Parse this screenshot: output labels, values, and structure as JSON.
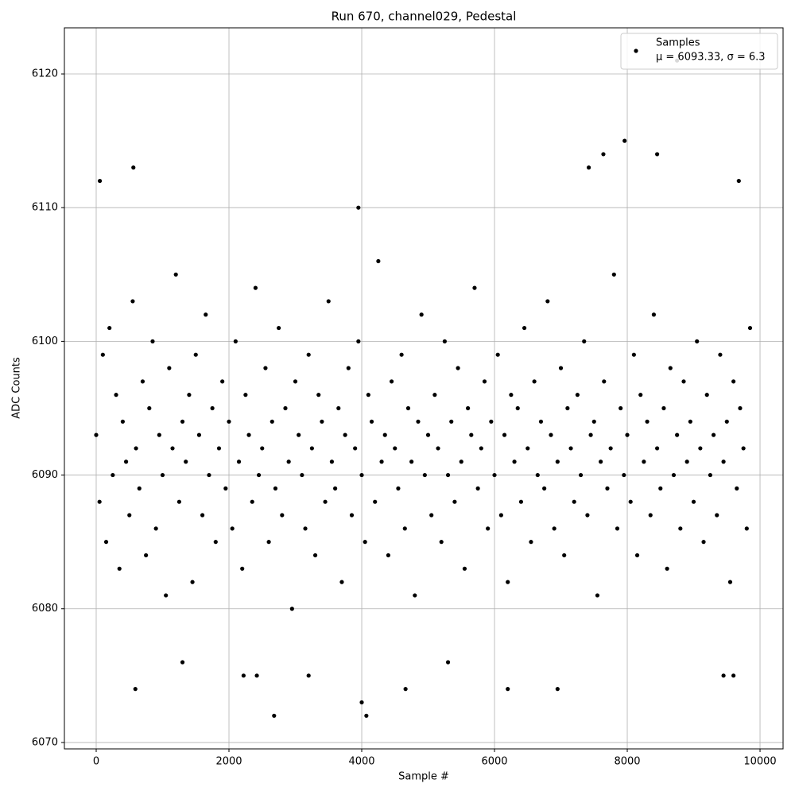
{
  "chart_data": {
    "type": "scatter",
    "title": "Run 670, channel029, Pedestal",
    "xlabel": "Sample #",
    "ylabel": "ADC Counts",
    "x": [
      0,
      50,
      100,
      150,
      200,
      250,
      300,
      350,
      400,
      450,
      500,
      550,
      600,
      650,
      700,
      750,
      800,
      850,
      900,
      950,
      1000,
      1050,
      1100,
      1150,
      1200,
      1250,
      1300,
      1350,
      1400,
      1450,
      1500,
      1550,
      1600,
      1650,
      1700,
      1750,
      1800,
      1850,
      1900,
      1950,
      2000,
      2050,
      2100,
      2150,
      2200,
      2250,
      2300,
      2350,
      2400,
      2450,
      2500,
      2550,
      2600,
      2650,
      2700,
      2750,
      2800,
      2850,
      2900,
      2950,
      3000,
      3050,
      3100,
      3150,
      3200,
      3250,
      3300,
      3350,
      3400,
      3450,
      3500,
      3550,
      3600,
      3650,
      3700,
      3750,
      3800,
      3850,
      3900,
      3950,
      4000,
      4050,
      4100,
      4150,
      4200,
      4250,
      4300,
      4350,
      4400,
      4450,
      4500,
      4550,
      4600,
      4650,
      4700,
      4750,
      4800,
      4850,
      4900,
      4950,
      5000,
      5050,
      5100,
      5150,
      5200,
      5250,
      5300,
      5350,
      5400,
      5450,
      5500,
      5550,
      5600,
      5650,
      5700,
      5750,
      5800,
      5850,
      5900,
      5950,
      6000,
      6050,
      6100,
      6150,
      6200,
      6250,
      6300,
      6350,
      6400,
      6450,
      6500,
      6550,
      6600,
      6650,
      6700,
      6750,
      6800,
      6850,
      6900,
      6950,
      7000,
      7050,
      7100,
      7150,
      7200,
      7250,
      7300,
      7350,
      7400,
      7450,
      7500,
      7550,
      7600,
      7650,
      7700,
      7750,
      7800,
      7850,
      7900,
      7950,
      8000,
      8050,
      8100,
      8150,
      8200,
      8250,
      8300,
      8350,
      8400,
      8450,
      8500,
      8550,
      8600,
      8650,
      8700,
      8750,
      8800,
      8850,
      8900,
      8950,
      9000,
      9050,
      9100,
      9150,
      9200,
      9250,
      9300,
      9350,
      9400,
      9450,
      9500,
      9550,
      9600,
      9650,
      9700,
      9750,
      9800,
      9850,
      55,
      560,
      590,
      2680,
      4000,
      4070,
      7420,
      7640,
      7960,
      8450,
      9680,
      8750,
      3950,
      6950,
      6200,
      4660,
      9450,
      9600,
      2220,
      2420,
      3200,
      5300,
      1300
    ],
    "series": [
      {
        "name": "Samples",
        "color": "#000000",
        "values": [
          6093,
          6088,
          6099,
          6085,
          6101,
          6090,
          6096,
          6083,
          6094,
          6091,
          6087,
          6103,
          6092,
          6089,
          6097,
          6084,
          6095,
          6100,
          6086,
          6093,
          6090,
          6081,
          6098,
          6092,
          6105,
          6088,
          6094,
          6091,
          6096,
          6082,
          6099,
          6093,
          6087,
          6102,
          6090,
          6095,
          6085,
          6092,
          6097,
          6089,
          6094,
          6086,
          6100,
          6091,
          6083,
          6096,
          6093,
          6088,
          6104,
          6090,
          6092,
          6098,
          6085,
          6094,
          6089,
          6101,
          6087,
          6095,
          6091,
          6080,
          6097,
          6093,
          6090,
          6086,
          6099,
          6092,
          6084,
          6096,
          6094,
          6088,
          6103,
          6091,
          6089,
          6095,
          6082,
          6093,
          6098,
          6087,
          6092,
          6100,
          6090,
          6085,
          6096,
          6094,
          6088,
          6106,
          6091,
          6093,
          6084,
          6097,
          6092,
          6089,
          6099,
          6086,
          6095,
          6091,
          6081,
          6094,
          6102,
          6090,
          6093,
          6087,
          6096,
          6092,
          6085,
          6100,
          6090,
          6094,
          6088,
          6098,
          6091,
          6083,
          6095,
          6093,
          6104,
          6089,
          6092,
          6097,
          6086,
          6094,
          6090,
          6099,
          6087,
          6093,
          6082,
          6096,
          6091,
          6095,
          6088,
          6101,
          6092,
          6085,
          6097,
          6090,
          6094,
          6089,
          6103,
          6093,
          6086,
          6091,
          6098,
          6084,
          6095,
          6092,
          6088,
          6096,
          6090,
          6100,
          6087,
          6093,
          6094,
          6081,
          6091,
          6097,
          6089,
          6092,
          6105,
          6086,
          6095,
          6090,
          6093,
          6088,
          6099,
          6084,
          6096,
          6091,
          6094,
          6087,
          6102,
          6092,
          6089,
          6095,
          6083,
          6098,
          6090,
          6093,
          6086,
          6097,
          6091,
          6094,
          6088,
          6100,
          6092,
          6085,
          6096,
          6090,
          6093,
          6087,
          6099,
          6091,
          6094,
          6082,
          6097,
          6089,
          6095,
          6092,
          6086,
          6101,
          6112,
          6113,
          6074,
          6072,
          6073,
          6072,
          6113,
          6114,
          6115,
          6114,
          6112,
          6121,
          6110,
          6074,
          6074,
          6074,
          6075,
          6075,
          6075,
          6075,
          6075,
          6076,
          6076
        ]
      }
    ],
    "annotation": "μ = 6093.33, σ = 6.3",
    "xlim": [
      -479,
      10347
    ],
    "ylim": [
      6069.52,
      6123.45
    ],
    "xticks": [
      0,
      2000,
      4000,
      6000,
      8000,
      10000
    ],
    "yticks": [
      6070,
      6080,
      6090,
      6100,
      6110,
      6120
    ],
    "grid": true,
    "legend": "upper right"
  }
}
